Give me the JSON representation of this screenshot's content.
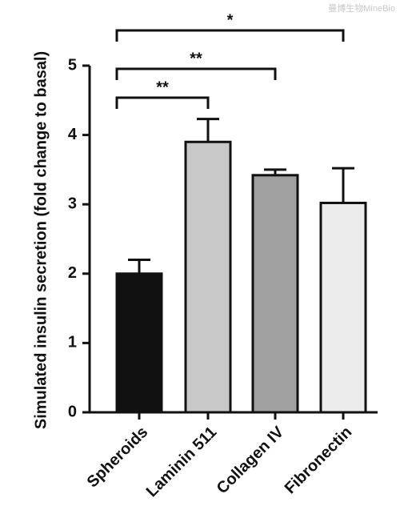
{
  "chart_data": {
    "type": "bar",
    "ylabel": "Simulated insulin secretion (fold change to basal)",
    "categories": [
      "Spheroids",
      "Laminin 511",
      "Collagen IV",
      "Fibronectin"
    ],
    "values": [
      2.0,
      3.9,
      3.42,
      3.02
    ],
    "errors": [
      0.2,
      0.33,
      0.08,
      0.5
    ],
    "colors": [
      "#111111",
      "#c8c8c8",
      "#a0a0a0",
      "#ececec"
    ],
    "ylim": [
      0,
      5
    ],
    "yticks": [
      0,
      1,
      2,
      3,
      4,
      5
    ],
    "annotations": [
      "**",
      "**",
      "*"
    ],
    "watermark": "曼博生物MineBio"
  }
}
